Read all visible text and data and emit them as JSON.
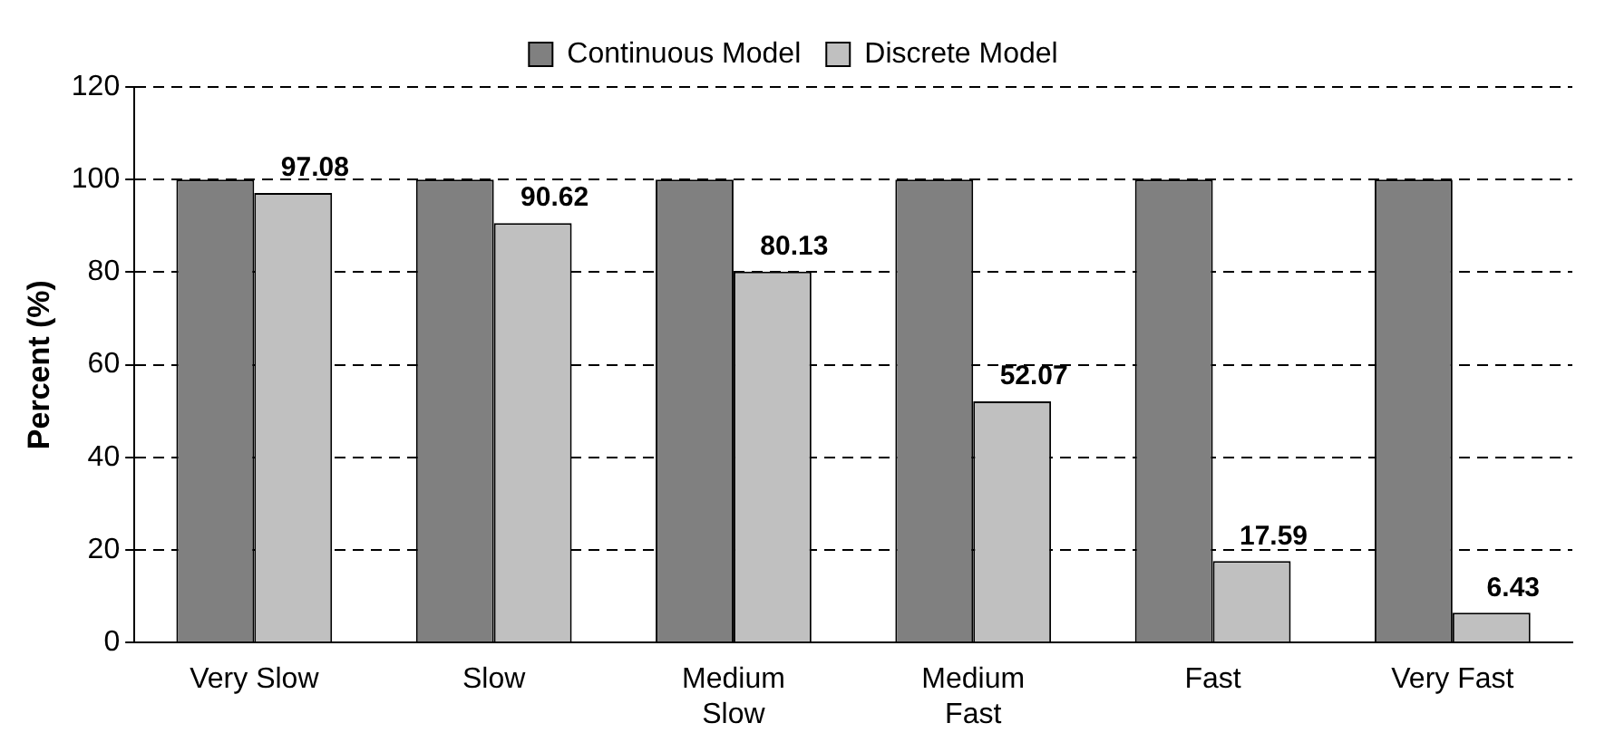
{
  "chart_data": {
    "type": "bar",
    "ylabel": "Percent (%)",
    "categories": [
      "Very Slow",
      "Slow",
      "Medium Slow",
      "Medium Fast",
      "Fast",
      "Very Fast"
    ],
    "series": [
      {
        "name": "Continuous Model",
        "color": "#808080",
        "values": [
          100,
          100,
          100,
          100,
          100,
          100
        ]
      },
      {
        "name": "Discrete Model",
        "color": "#c0c0c0",
        "values": [
          97.08,
          90.62,
          80.13,
          52.07,
          17.59,
          6.43
        ],
        "value_labels": [
          "97.08",
          "90.62",
          "80.13",
          "52.07",
          "17.59",
          "6.43"
        ]
      }
    ],
    "ylim": [
      0,
      120
    ],
    "yticks": [
      0,
      20,
      40,
      60,
      80,
      100,
      120
    ],
    "grid": "y",
    "legend": "top"
  }
}
